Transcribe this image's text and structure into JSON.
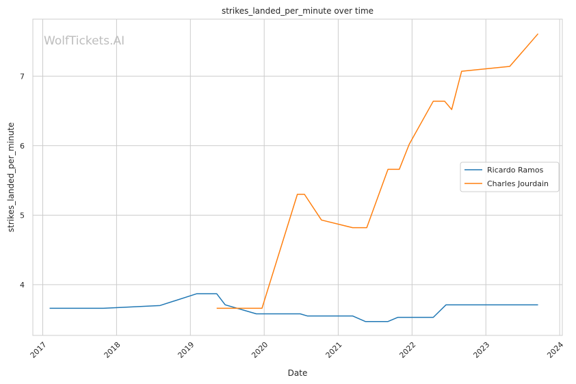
{
  "chart_data": {
    "type": "line",
    "title": "strikes_landed_per_minute over time",
    "xlabel": "Date",
    "ylabel": "strikes_landed_per_minute",
    "watermark": "WolfTickets.AI",
    "x_ticks": [
      "2017",
      "2018",
      "2019",
      "2020",
      "2021",
      "2022",
      "2023",
      "2024"
    ],
    "y_ticks": [
      "4",
      "5",
      "6",
      "7"
    ],
    "xlim": [
      "2016-11-13",
      "2024-01-14"
    ],
    "ylim": [
      3.27,
      7.82
    ],
    "grid": true,
    "legend_position": "center-right",
    "series": [
      {
        "name": "Ricardo Ramos",
        "color": "#1f77b4",
        "points": [
          [
            "2017-02-04",
            3.66
          ],
          [
            "2017-10-28",
            3.66
          ],
          [
            "2018-08-04",
            3.7
          ],
          [
            "2019-02-02",
            3.87
          ],
          [
            "2019-05-11",
            3.87
          ],
          [
            "2019-06-22",
            3.71
          ],
          [
            "2019-11-23",
            3.58
          ],
          [
            "2020-06-27",
            3.58
          ],
          [
            "2020-08-01",
            3.55
          ],
          [
            "2021-03-13",
            3.55
          ],
          [
            "2021-05-15",
            3.47
          ],
          [
            "2021-09-04",
            3.47
          ],
          [
            "2021-10-23",
            3.53
          ],
          [
            "2022-04-16",
            3.53
          ],
          [
            "2022-06-18",
            3.71
          ],
          [
            "2023-04-22",
            3.71
          ],
          [
            "2023-09-16",
            3.71
          ]
        ]
      },
      {
        "name": "Charles Jourdain",
        "color": "#ff7f0e",
        "points": [
          [
            "2019-05-11",
            3.66
          ],
          [
            "2019-12-21",
            3.66
          ],
          [
            "2020-06-13",
            5.3
          ],
          [
            "2020-07-18",
            5.3
          ],
          [
            "2020-10-10",
            4.93
          ],
          [
            "2021-03-13",
            4.82
          ],
          [
            "2021-05-22",
            4.82
          ],
          [
            "2021-09-04",
            5.66
          ],
          [
            "2021-10-30",
            5.66
          ],
          [
            "2021-12-18",
            6.02
          ],
          [
            "2022-04-16",
            6.64
          ],
          [
            "2022-06-11",
            6.64
          ],
          [
            "2022-07-16",
            6.52
          ],
          [
            "2022-09-03",
            7.07
          ],
          [
            "2023-04-29",
            7.14
          ],
          [
            "2023-09-16",
            7.61
          ]
        ]
      }
    ]
  }
}
